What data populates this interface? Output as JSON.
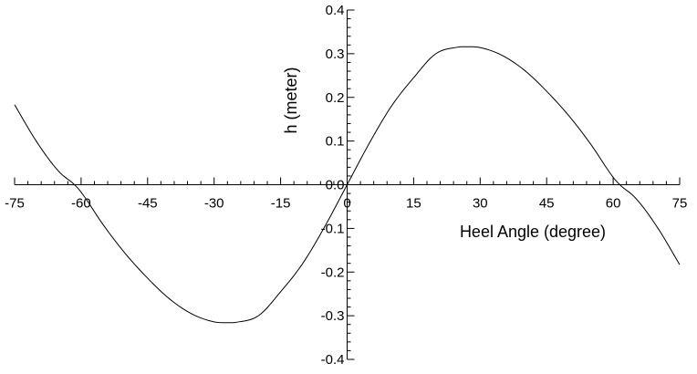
{
  "chart_data": {
    "type": "line",
    "title": "",
    "xlabel": "Heel Angle (degree)",
    "ylabel": "h (meter)",
    "xlim": [
      -75,
      75
    ],
    "ylim": [
      -0.4,
      0.4
    ],
    "x_ticks": [
      -75,
      -60,
      -45,
      -30,
      -15,
      0,
      15,
      30,
      45,
      60,
      75
    ],
    "x_tick_labels": [
      "-75",
      "-60",
      "-45",
      "-30",
      "-15",
      "0",
      "15",
      "30",
      "45",
      "60",
      "75"
    ],
    "y_ticks": [
      -0.4,
      -0.3,
      -0.2,
      -0.1,
      0.0,
      0.1,
      0.2,
      0.3,
      0.4
    ],
    "y_tick_labels": [
      "-0.4",
      "-0.3",
      "-0.2",
      "-0.1",
      "0.0",
      "0.1",
      "0.2",
      "0.3",
      "0.4"
    ],
    "grid": false,
    "series": [
      {
        "x": [
          -75,
          -70,
          -65,
          -61.5,
          -60,
          -55,
          -50,
          -45,
          -40,
          -35,
          -30,
          -26.5,
          -25,
          -20,
          -15,
          -10,
          -5,
          0,
          5,
          10,
          15,
          20,
          25,
          26.5,
          30,
          35,
          40,
          45,
          50,
          55,
          60,
          61.5,
          65,
          70,
          75
        ],
        "y": [
          0.183,
          0.098,
          0.03,
          0.0,
          -0.017,
          -0.092,
          -0.158,
          -0.214,
          -0.262,
          -0.296,
          -0.314,
          -0.316,
          -0.315,
          -0.3,
          -0.245,
          -0.18,
          -0.095,
          0.0,
          0.095,
          0.18,
          0.245,
          0.3,
          0.315,
          0.316,
          0.314,
          0.296,
          0.262,
          0.214,
          0.158,
          0.092,
          0.017,
          0.0,
          -0.03,
          -0.098,
          -0.183
        ]
      }
    ]
  }
}
